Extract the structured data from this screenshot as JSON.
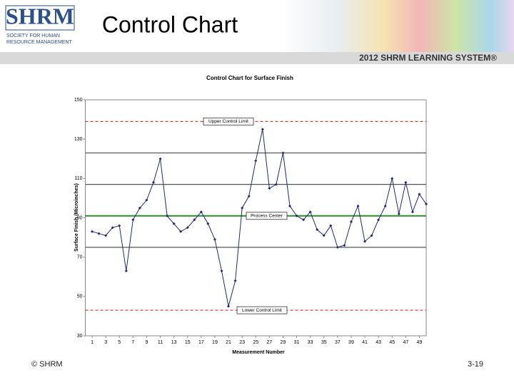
{
  "header": {
    "logo": "SHRM",
    "logo_line_1": "SOCIETY FOR HUMAN",
    "logo_line_2": "RESOURCE MANAGEMENT",
    "title": "Control Chart",
    "banner": "2012 SHRM LEARNING SYSTEM®"
  },
  "footer": {
    "copyright": "© SHRM",
    "page": "3-19"
  },
  "chart_data": {
    "type": "line",
    "title": "Control Chart for Surface Finish",
    "x_label": "Measurement Number",
    "y_label": "Surface Finish (Microinches)",
    "x": [
      1,
      2,
      3,
      4,
      5,
      6,
      7,
      8,
      9,
      10,
      11,
      12,
      13,
      14,
      15,
      16,
      17,
      18,
      19,
      20,
      21,
      22,
      23,
      24,
      25,
      26,
      27,
      28,
      29,
      30,
      31,
      32,
      33,
      34,
      35,
      36,
      37,
      38,
      39,
      40,
      41,
      42,
      43,
      44,
      45,
      46,
      47,
      48,
      49,
      50
    ],
    "values": [
      83,
      82,
      81,
      85,
      86,
      63,
      89,
      95,
      99,
      108,
      120,
      91,
      87,
      83,
      85,
      89,
      93,
      87,
      79,
      63,
      45,
      58,
      95,
      101,
      119,
      135,
      105,
      107,
      123,
      96,
      91,
      89,
      93,
      84,
      81,
      86,
      75,
      76,
      88,
      96,
      78,
      81,
      89,
      96,
      110,
      92,
      108,
      93,
      102,
      97
    ],
    "color": "#1f2a7a",
    "xlim": [
      0,
      50
    ],
    "xticks": [
      1,
      3,
      5,
      7,
      9,
      11,
      13,
      15,
      17,
      19,
      21,
      23,
      25,
      27,
      29,
      31,
      33,
      35,
      37,
      39,
      41,
      43,
      45,
      47,
      49
    ],
    "ylim": [
      30,
      150
    ],
    "yticks": [
      30,
      50,
      70,
      90,
      110,
      130,
      150
    ],
    "reference_lines": [
      {
        "label": "Upper Control Limit",
        "value": 139,
        "color": "#d9413a",
        "style": "dashed"
      },
      {
        "label": "Process Center",
        "value": 91,
        "color": "#2e8b2e",
        "style": "solid"
      },
      {
        "label": "Lower Control Limit",
        "value": 43,
        "color": "#d9413a",
        "style": "dashed"
      }
    ],
    "zone_lines": {
      "values": [
        123,
        107,
        75
      ],
      "color": "#555555"
    },
    "grid": false
  }
}
